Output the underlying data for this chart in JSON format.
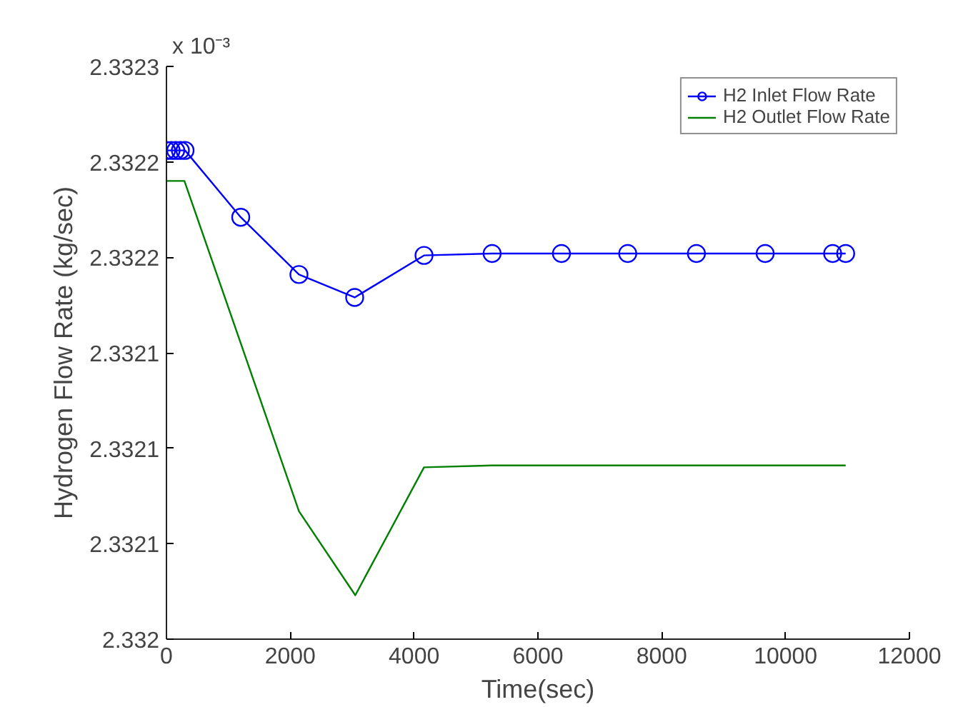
{
  "chart_data": {
    "type": "line",
    "xlabel": "Time(sec)",
    "ylabel": "Hydrogen Flow Rate (kg/sec)",
    "annotations": [
      "x 10⁻³"
    ],
    "xlim": [
      0,
      12000
    ],
    "xticks": [
      0,
      2000,
      4000,
      6000,
      8000,
      10000,
      12000
    ],
    "ylim": [
      2.332,
      2.3323
    ],
    "yticks": [
      {
        "value": 2.332,
        "label": "2.332"
      },
      {
        "value": 2.33205,
        "label": "2.3321"
      },
      {
        "value": 2.3321,
        "label": "2.3321"
      },
      {
        "value": 2.33215,
        "label": "2.3321"
      },
      {
        "value": 2.3322,
        "label": "2.3322"
      },
      {
        "value": 2.33225,
        "label": "2.3322"
      },
      {
        "value": 2.3323,
        "label": "2.3323"
      }
    ],
    "grid": false,
    "legend": "top right",
    "series": [
      {
        "name": "H2 Inlet Flow Rate",
        "color": "#0000ff",
        "marker": "circle",
        "x": [
          0,
          75,
          150,
          225,
          300,
          1200,
          2140,
          3040,
          4160,
          5260,
          6380,
          7450,
          8560,
          9670,
          10760,
          10970
        ],
        "values": [
          2.332256,
          2.332256,
          2.332256,
          2.332256,
          2.332256,
          2.332221,
          2.332191,
          2.332179,
          2.332201,
          2.332202,
          2.332202,
          2.332202,
          2.332202,
          2.332202,
          2.332202,
          2.332202
        ]
      },
      {
        "name": "H2 Outlet Flow Rate",
        "color": "#008000",
        "marker": "none",
        "x": [
          0,
          290,
          1200,
          2140,
          3050,
          4160,
          5260,
          10970
        ],
        "values": [
          2.33224,
          2.33224,
          2.332155,
          2.332067,
          2.332023,
          2.33209,
          2.332091,
          2.332091
        ]
      }
    ]
  }
}
